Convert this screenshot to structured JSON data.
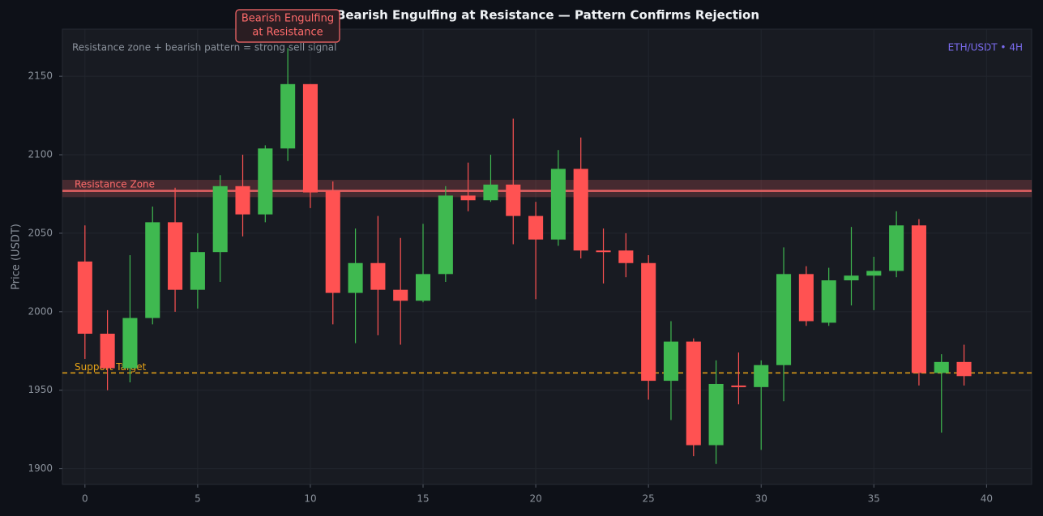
{
  "chart_data": {
    "type": "candlestick",
    "title": "Bearish Engulfing at Resistance — Pattern Confirms Rejection",
    "subtitle": "Resistance zone + bearish pattern = strong sell signal",
    "symbol": "ETH/USDT • 4H",
    "ylabel": "Price (USDT)",
    "annotation": {
      "lines": [
        "Bearish Engulfing",
        "at Resistance"
      ],
      "color": "#ff6b6b"
    },
    "up_color": "#3fb950",
    "down_color": "#ff5252",
    "grid": true,
    "x": [
      0,
      1,
      2,
      3,
      4,
      5,
      6,
      7,
      8,
      9,
      10,
      11,
      12,
      13,
      14,
      15,
      16,
      17,
      18,
      19,
      20,
      21,
      22,
      23,
      24,
      25,
      26,
      27,
      28,
      29,
      30,
      31,
      32,
      33,
      34,
      35,
      36,
      37,
      38,
      39
    ],
    "open": [
      2032,
      1986,
      1964,
      1996,
      2057,
      2014,
      2038,
      2080,
      2062,
      2104,
      2145,
      2077,
      2012,
      2031,
      2014,
      2007,
      2024,
      2074,
      2071,
      2081,
      2061,
      2046,
      2091,
      2039,
      2039,
      2031,
      1956,
      1981,
      1915,
      1953,
      1952,
      1966,
      2024,
      1993,
      2020,
      2023,
      2026,
      2055,
      1961,
      1968
    ],
    "high": [
      2055,
      2001,
      2036,
      2067,
      2079,
      2050,
      2087,
      2100,
      2106,
      2168,
      2145,
      2083,
      2053,
      2061,
      2047,
      2056,
      2080,
      2095,
      2100,
      2123,
      2070,
      2103,
      2111,
      2053,
      2050,
      2036,
      1994,
      1983,
      1969,
      1974,
      1969,
      2041,
      2029,
      2028,
      2054,
      2035,
      2064,
      2059,
      1973,
      1979
    ],
    "low": [
      1970,
      1950,
      1955,
      1992,
      2000,
      2002,
      2019,
      2048,
      2057,
      2096,
      2066,
      1992,
      1980,
      1985,
      1979,
      2006,
      2019,
      2064,
      2070,
      2043,
      2008,
      2042,
      2034,
      2018,
      2022,
      1944,
      1931,
      1908,
      1903,
      1941,
      1912,
      1943,
      1991,
      1991,
      2004,
      2001,
      2022,
      1953,
      1923,
      1953
    ],
    "close": [
      1986,
      1964,
      1996,
      2057,
      2014,
      2038,
      2080,
      2062,
      2104,
      2145,
      2076,
      2012,
      2031,
      2014,
      2007,
      2024,
      2074,
      2071,
      2081,
      2061,
      2046,
      2091,
      2039,
      2038,
      2031,
      1956,
      1981,
      1915,
      1954,
      1952,
      1966,
      2024,
      1994,
      2020,
      2023,
      2026,
      2055,
      1961,
      1968,
      1959
    ],
    "resistance": {
      "label": "Resistance Zone",
      "range": [
        2073,
        2084
      ],
      "level": 2077,
      "color": "#ff6b6b"
    },
    "support": {
      "label": "Support Target",
      "level": 1961,
      "color": "#e6a317"
    },
    "xlim": [
      -1,
      42
    ],
    "ylim": [
      1890,
      2180
    ],
    "xticks": [
      0,
      5,
      10,
      15,
      20,
      25,
      30,
      35,
      40
    ],
    "yticks": [
      1900,
      1950,
      2000,
      2050,
      2100,
      2150
    ]
  }
}
